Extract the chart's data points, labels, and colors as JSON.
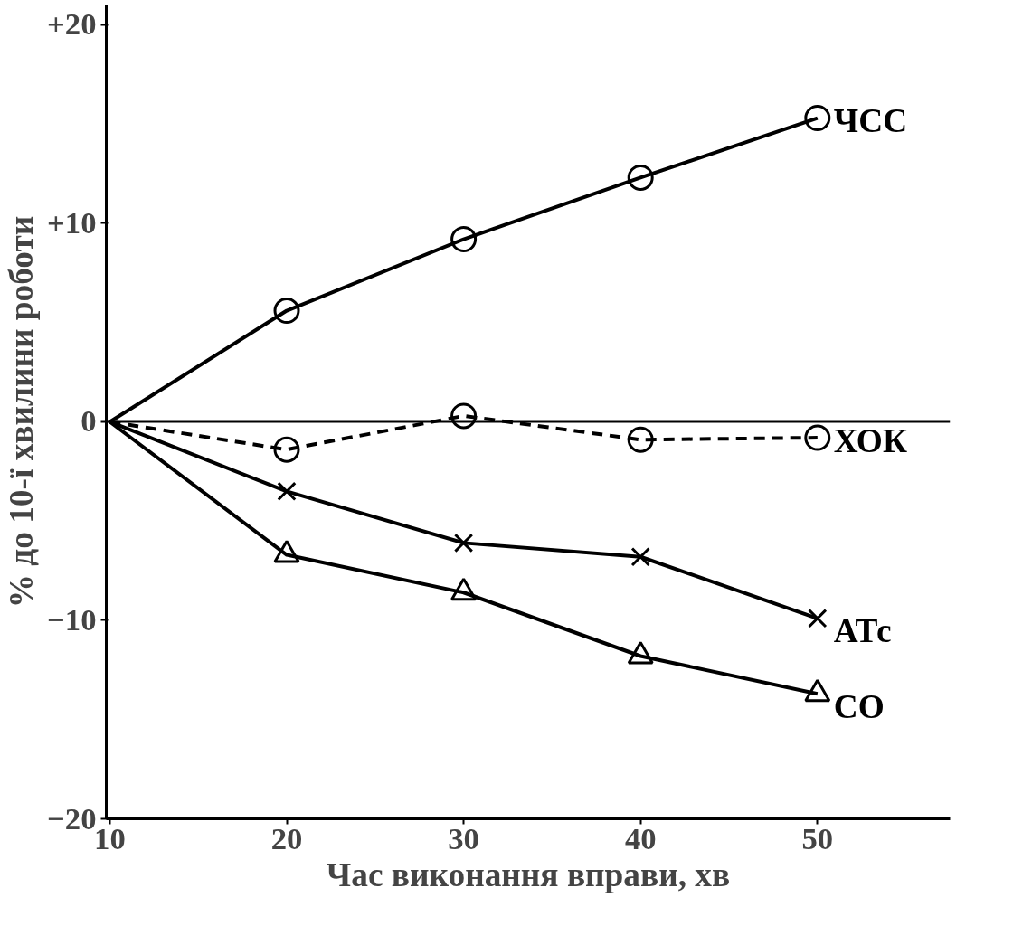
{
  "chart_data": {
    "type": "line",
    "xlabel": "Час виконання вправи, хв",
    "ylabel": "% до 10-ї хвилини роботи",
    "x": [
      10,
      20,
      30,
      40,
      50
    ],
    "series": [
      {
        "name": "ЧСС",
        "color": "#000000",
        "marker": "circle",
        "line_style": "solid",
        "values": [
          0,
          5.6,
          9.2,
          12.3,
          15.3
        ]
      },
      {
        "name": "ХОК",
        "color": "#000000",
        "marker": "circle",
        "line_style": "dashed",
        "values": [
          0,
          -1.4,
          0.3,
          -0.9,
          -0.8
        ]
      },
      {
        "name": "АТс",
        "color": "#000000",
        "marker": "cross",
        "line_style": "solid",
        "values": [
          0,
          -3.5,
          -6.1,
          -6.8,
          -9.9
        ]
      },
      {
        "name": "СО",
        "color": "#000000",
        "marker": "triangle",
        "line_style": "solid",
        "values": [
          0,
          -6.7,
          -8.6,
          -11.8,
          -13.7
        ]
      }
    ],
    "xlim": [
      9.8,
      57.5
    ],
    "xticks": [
      10,
      20,
      30,
      40,
      50
    ],
    "ylim": [
      -20,
      21
    ],
    "yticks": [
      -20,
      -10,
      0,
      {
        "value": 10,
        "label": "+10"
      },
      {
        "value": 20,
        "label": "+20"
      }
    ],
    "ref_lines": [
      {
        "axis": "y",
        "value": 0,
        "label": null
      }
    ],
    "grid": false,
    "legend": false
  }
}
